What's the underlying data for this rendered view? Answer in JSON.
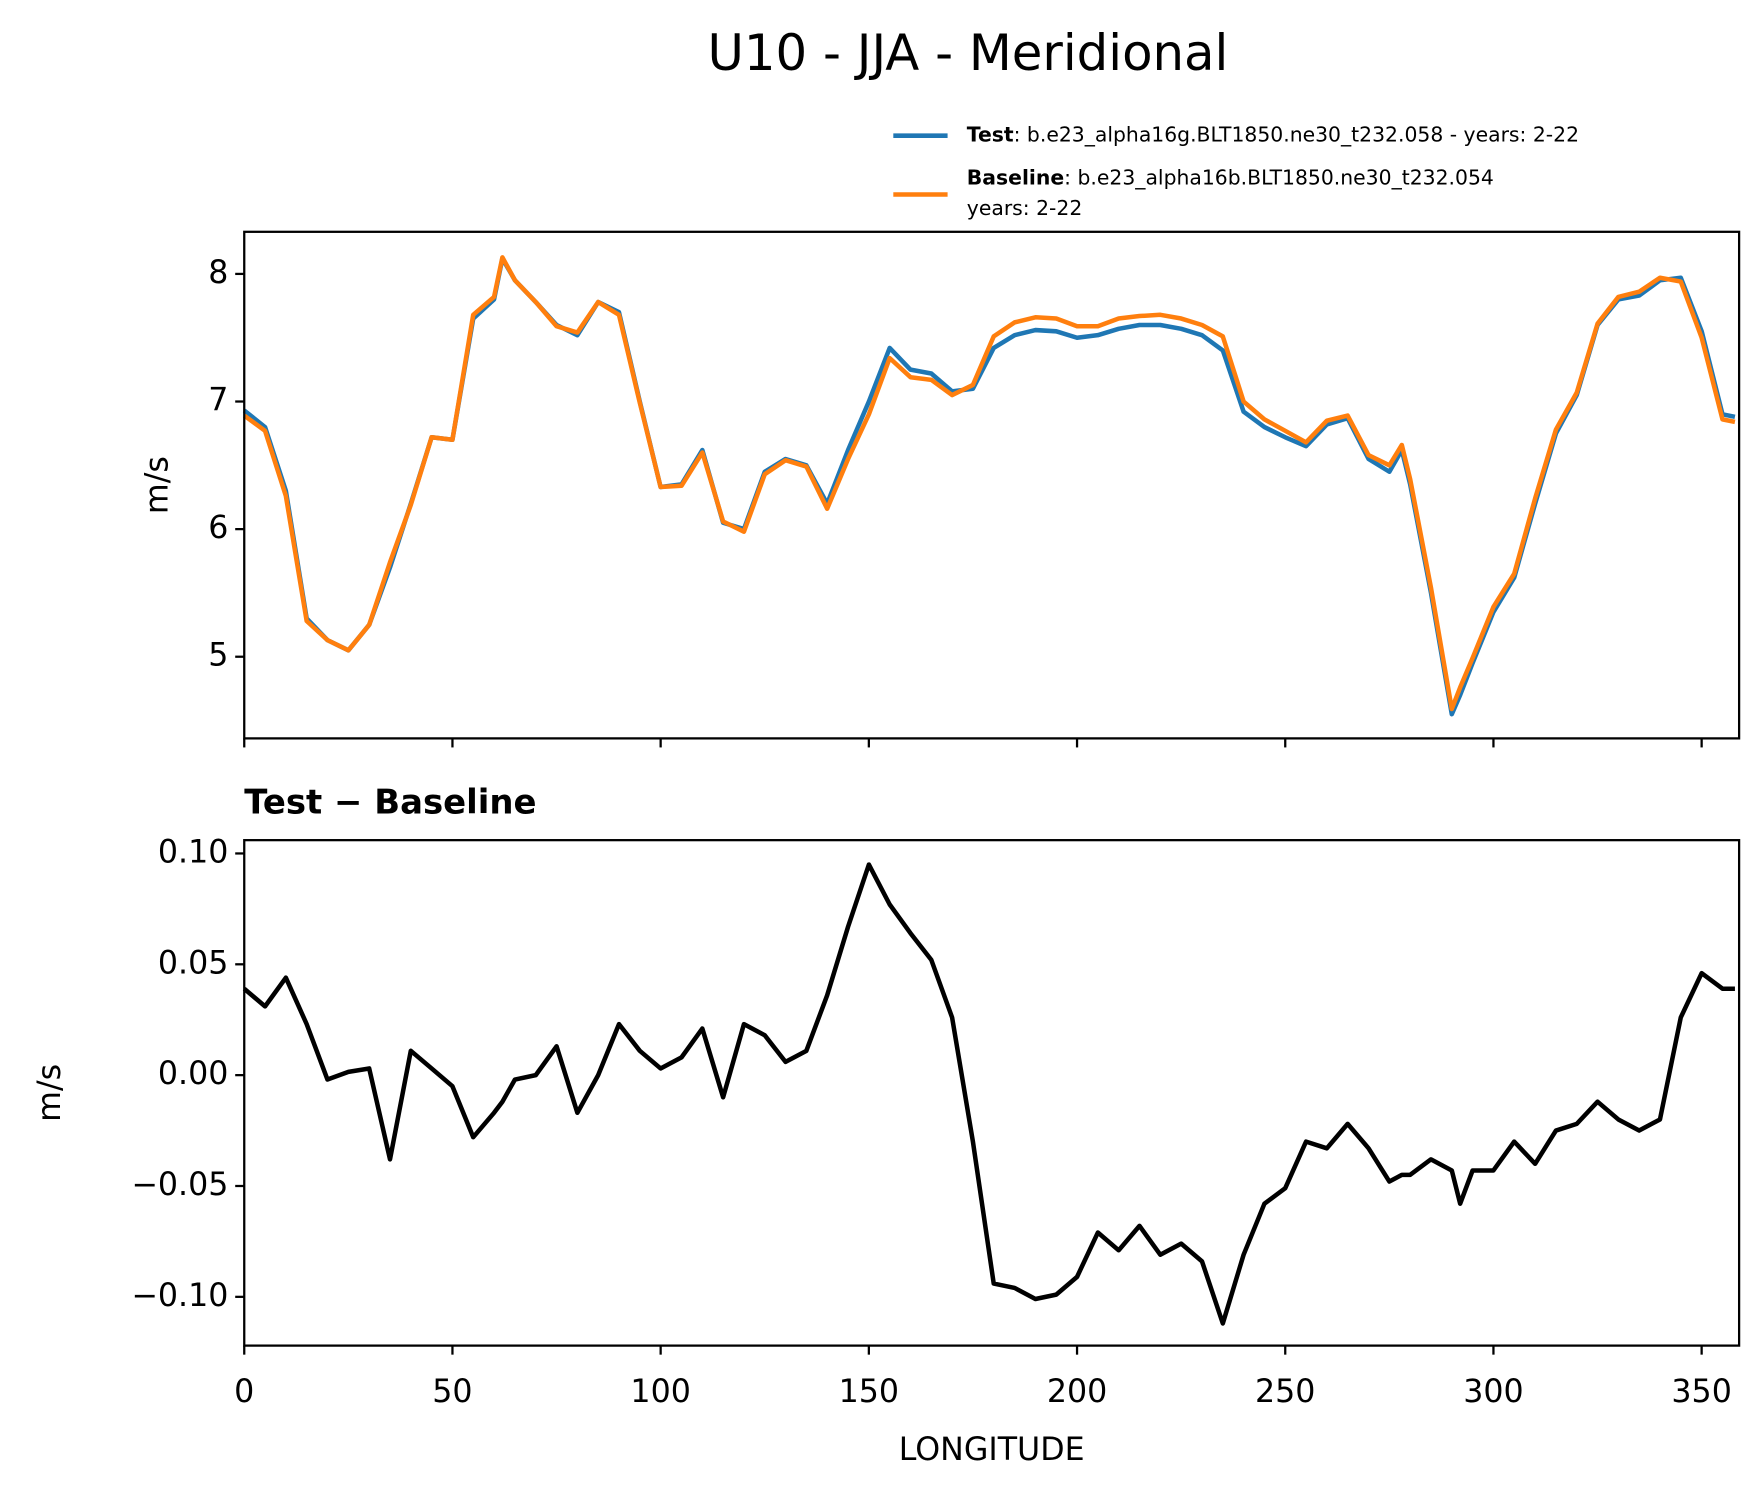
{
  "chart_data": [
    {
      "type": "line",
      "title": "U10 - JJA - Meridional",
      "ylabel": "m/s",
      "x": [
        0,
        5,
        10,
        15,
        20,
        25,
        30,
        35,
        40,
        45,
        50,
        55,
        60,
        62,
        65,
        70,
        75,
        80,
        85,
        90,
        95,
        100,
        105,
        110,
        115,
        120,
        125,
        130,
        135,
        140,
        145,
        150,
        155,
        160,
        165,
        170,
        175,
        180,
        185,
        190,
        195,
        200,
        205,
        210,
        215,
        220,
        225,
        230,
        235,
        240,
        245,
        250,
        255,
        260,
        265,
        270,
        275,
        278,
        280,
        285,
        290,
        292,
        295,
        300,
        305,
        310,
        315,
        320,
        325,
        330,
        335,
        340,
        345,
        350,
        355,
        358
      ],
      "series": [
        {
          "name": "Test",
          "label_lines": [
            ": b.e23_alpha16g.BLT1850.ne30_t232.058 - years: 2-22"
          ],
          "color": "#1f77b4",
          "values": [
            6.93,
            6.8,
            6.3,
            5.3,
            5.13,
            5.05,
            5.25,
            5.7,
            6.2,
            6.72,
            6.7,
            7.65,
            7.8,
            8.12,
            7.95,
            7.78,
            7.6,
            7.52,
            7.78,
            7.7,
            7.0,
            6.33,
            6.35,
            6.62,
            6.05,
            6.0,
            6.45,
            6.55,
            6.5,
            6.2,
            6.62,
            7.0,
            7.42,
            7.25,
            7.22,
            7.08,
            7.1,
            7.42,
            7.52,
            7.56,
            7.55,
            7.5,
            7.52,
            7.57,
            7.6,
            7.6,
            7.57,
            7.52,
            7.4,
            6.92,
            6.8,
            6.72,
            6.65,
            6.82,
            6.87,
            6.55,
            6.45,
            6.62,
            6.35,
            5.5,
            4.55,
            4.7,
            4.95,
            5.35,
            5.62,
            6.2,
            6.75,
            7.05,
            7.6,
            7.8,
            7.83,
            7.95,
            7.97,
            7.55,
            6.9,
            6.88
          ]
        },
        {
          "name": "Baseline",
          "label_lines": [
            ": b.e23_alpha16b.BLT1850.ne30_t232.054",
            "years: 2-22"
          ],
          "color": "#ff7f0e",
          "values": [
            6.89,
            6.77,
            6.26,
            5.28,
            5.13,
            5.05,
            5.25,
            5.74,
            6.19,
            6.72,
            6.7,
            7.68,
            7.82,
            8.13,
            7.95,
            7.78,
            7.59,
            7.54,
            7.78,
            7.68,
            6.99,
            6.33,
            6.34,
            6.6,
            6.06,
            5.98,
            6.43,
            6.54,
            6.49,
            6.16,
            6.55,
            6.9,
            7.34,
            7.19,
            7.17,
            7.05,
            7.13,
            7.51,
            7.62,
            7.66,
            7.65,
            7.59,
            7.59,
            7.65,
            7.67,
            7.68,
            7.65,
            7.6,
            7.51,
            7.0,
            6.86,
            6.77,
            6.68,
            6.85,
            6.89,
            6.58,
            6.5,
            6.66,
            6.39,
            5.54,
            4.59,
            4.76,
            4.99,
            5.39,
            5.65,
            6.24,
            6.78,
            7.07,
            7.61,
            7.82,
            7.86,
            7.97,
            7.94,
            7.5,
            6.86,
            6.84
          ]
        }
      ],
      "xlim": [
        0,
        359
      ],
      "xticks": [
        0,
        50,
        100,
        150,
        200,
        250,
        300,
        350
      ],
      "show_xtick_labels": false,
      "ylim": [
        4.36,
        8.33
      ],
      "yticks": [
        5,
        6,
        7,
        8
      ]
    },
    {
      "type": "line",
      "title": "Test − Baseline",
      "ylabel": "m/s",
      "xlabel": "LONGITUDE",
      "x": [
        0,
        5,
        10,
        15,
        20,
        25,
        30,
        35,
        40,
        45,
        50,
        55,
        60,
        62,
        65,
        70,
        75,
        80,
        85,
        90,
        95,
        100,
        105,
        110,
        115,
        120,
        125,
        130,
        135,
        140,
        145,
        150,
        155,
        160,
        165,
        170,
        175,
        180,
        185,
        190,
        195,
        200,
        205,
        210,
        215,
        220,
        225,
        230,
        235,
        240,
        245,
        250,
        255,
        260,
        265,
        270,
        275,
        278,
        280,
        285,
        290,
        292,
        295,
        300,
        305,
        310,
        315,
        320,
        325,
        330,
        335,
        340,
        345,
        350,
        355,
        358
      ],
      "series": [
        {
          "color": "#000000",
          "values": [
            0.039,
            0.031,
            0.044,
            0.023,
            -0.002,
            0.0015,
            0.003,
            -0.038,
            0.011,
            0.003,
            -0.005,
            -0.028,
            -0.017,
            -0.012,
            -0.002,
            0.0,
            0.013,
            -0.017,
            0.0,
            0.023,
            0.011,
            0.003,
            0.008,
            0.021,
            -0.01,
            0.023,
            0.018,
            0.006,
            0.011,
            0.036,
            0.067,
            0.095,
            0.077,
            0.064,
            0.052,
            0.026,
            -0.03,
            -0.094,
            -0.096,
            -0.101,
            -0.099,
            -0.091,
            -0.071,
            -0.079,
            -0.068,
            -0.081,
            -0.076,
            -0.084,
            -0.112,
            -0.081,
            -0.058,
            -0.051,
            -0.03,
            -0.033,
            -0.022,
            -0.033,
            -0.048,
            -0.045,
            -0.045,
            -0.038,
            -0.043,
            -0.058,
            -0.043,
            -0.043,
            -0.03,
            -0.04,
            -0.025,
            -0.022,
            -0.012,
            -0.02,
            -0.025,
            -0.02,
            0.026,
            0.046,
            0.039,
            0.039
          ]
        }
      ],
      "xlim": [
        0,
        359
      ],
      "xticks": [
        0,
        50,
        100,
        150,
        200,
        250,
        300,
        350
      ],
      "show_xtick_labels": true,
      "ylim": [
        -0.122,
        0.106
      ],
      "yticks": [
        {
          "value": -0.1,
          "label": "−0.10"
        },
        {
          "value": -0.05,
          "label": "−0.05"
        },
        {
          "value": 0,
          "label": "0.00"
        },
        {
          "value": 0.05,
          "label": "0.05"
        },
        {
          "value": 0.1,
          "label": "0.10"
        }
      ]
    }
  ]
}
